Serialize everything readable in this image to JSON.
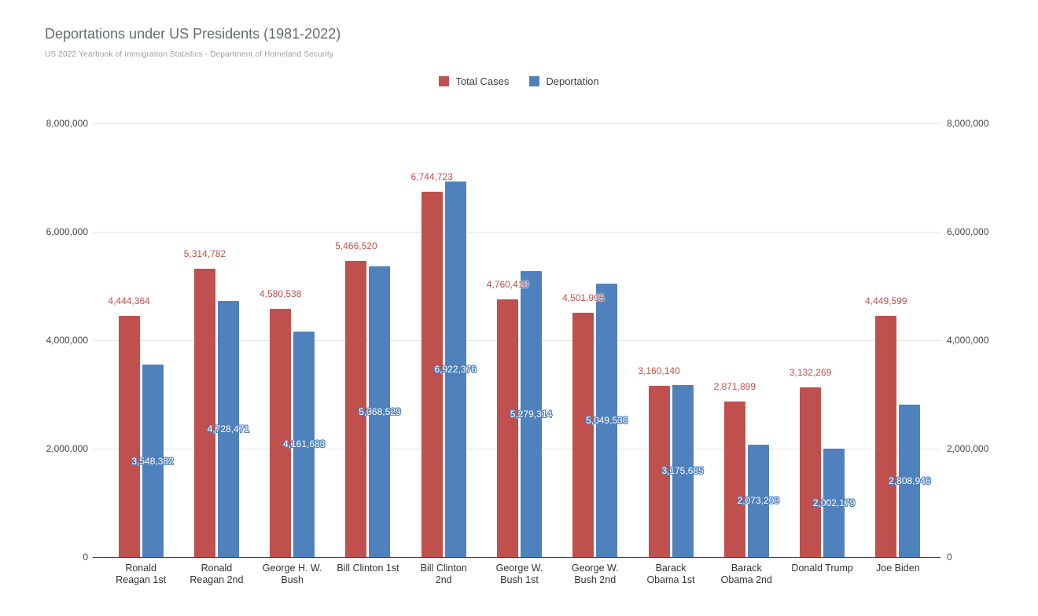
{
  "chart_data": {
    "type": "bar",
    "title": "Deportations under US Presidents (1981-2022)",
    "subtitle": "US 2022 Yearbook of Immigration Statistics - Department of Homeland Security",
    "categories": [
      "Ronald Reagan 1st",
      "Ronald Reagan 2nd",
      "George H. W. Bush",
      "Bill Clinton 1st",
      "Bill Clinton 2nd",
      "George W. Bush 1st",
      "George W. Bush 2nd",
      "Barack Obama 1st",
      "Barack Obama 2nd",
      "Donald Trump",
      "Joe Biden"
    ],
    "category_lines": [
      [
        "Ronald",
        "Reagan 1st"
      ],
      [
        "Ronald",
        "Reagan 2nd"
      ],
      [
        "George H. W.",
        "Bush"
      ],
      [
        "Bill Clinton 1st"
      ],
      [
        "Bill Clinton",
        "2nd"
      ],
      [
        "George W.",
        "Bush 1st"
      ],
      [
        "George W.",
        "Bush 2nd"
      ],
      [
        "Barack",
        "Obama 1st"
      ],
      [
        "Barack",
        "Obama 2nd"
      ],
      [
        "Donald Trump"
      ],
      [
        "Joe Biden"
      ]
    ],
    "series": [
      {
        "name": "Total Cases",
        "color": "#c0504d",
        "label_position": "above",
        "values": [
          4444364,
          5314782,
          4580538,
          5466520,
          6744723,
          4760410,
          4501905,
          3160140,
          2871899,
          3132269,
          4449599
        ],
        "labels": [
          "4,444,364",
          "5,314,782",
          "4,580,538",
          "5,466,520",
          "6,744,723",
          "4,760,410",
          "4,501,905",
          "3,160,140",
          "2,871,899",
          "3,132,269",
          "4,449,599"
        ]
      },
      {
        "name": "Deportation",
        "color": "#4f81bd",
        "label_position": "inside-center",
        "values": [
          3548382,
          4728471,
          4161683,
          5368529,
          6922376,
          5279314,
          5049536,
          3175685,
          2073208,
          2002179,
          2808946
        ],
        "labels": [
          "3,548,382",
          "4,728,471",
          "4,161,683",
          "5,368,529",
          "6,922,376",
          "5,279,314",
          "5,049,536",
          "3,175,685",
          "2,073,208",
          "2,002,179",
          "2,808,946"
        ]
      }
    ],
    "xlabel": "",
    "ylabel": "",
    "ylim": [
      0,
      8000000
    ],
    "yticks": [
      0,
      2000000,
      4000000,
      6000000,
      8000000
    ],
    "ytick_labels": [
      "0",
      "2,000,000",
      "4,000,000",
      "6,000,000",
      "8,000,000"
    ],
    "grid": true,
    "legend_position": "top-center",
    "axes": {
      "left": true,
      "right": true
    },
    "colors": {
      "gridline": "#e6e6e6",
      "baseline": "#424242",
      "axis_text": "#444444",
      "category_text": "#333333",
      "title_text": "#666b6e",
      "subtitle_text": "#9e9e9e"
    }
  }
}
